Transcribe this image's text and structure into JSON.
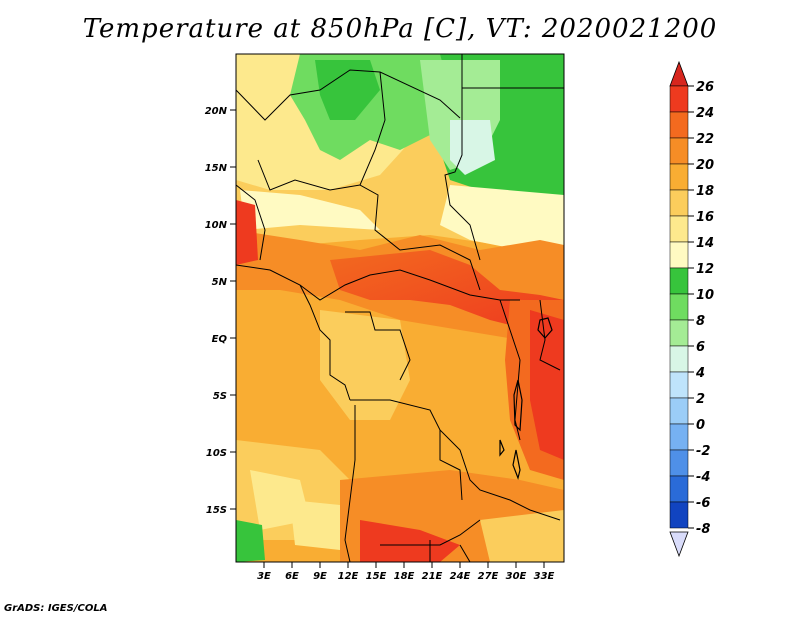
{
  "title": "Temperature at 850hPa [C], VT: 2020021200",
  "credit": "GrADS: IGES/COLA",
  "map": {
    "lat_labels": [
      "20N",
      "15N",
      "10N",
      "5N",
      "EQ",
      "5S",
      "10S",
      "15S"
    ],
    "lon_labels": [
      "3E",
      "6E",
      "9E",
      "12E",
      "15E",
      "18E",
      "21E",
      "24E",
      "27E",
      "30E",
      "33E"
    ]
  },
  "colorbar": {
    "levels": [
      "26",
      "24",
      "22",
      "20",
      "18",
      "16",
      "14",
      "12",
      "10",
      "8",
      "6",
      "4",
      "2",
      "0",
      "-2",
      "-4",
      "-6",
      "-8"
    ],
    "colors": {
      "top_triangle": "#d7261e",
      "bins": [
        "#ee3a1f",
        "#f36a1f",
        "#f68d26",
        "#f9ad33",
        "#fbcd5c",
        "#fde98d",
        "#fffac2",
        "#37c43c",
        "#6fdc60",
        "#a4ec95",
        "#d8f6e6",
        "#bfe4fb",
        "#9bcdf7",
        "#76b1f2",
        "#4f90e8",
        "#2a6bd8",
        "#1144c0",
        "#062595"
      ],
      "bottom_triangle": "#d9dcfa"
    }
  }
}
